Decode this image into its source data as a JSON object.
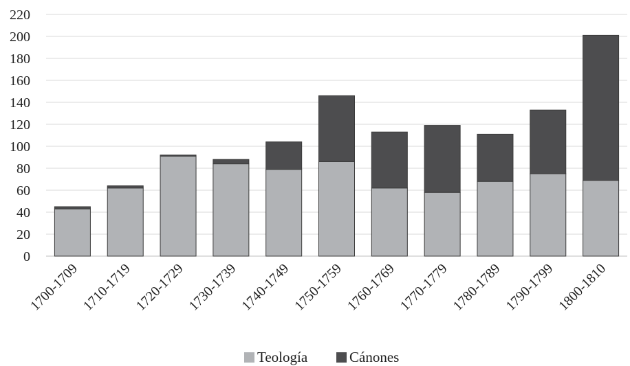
{
  "chart_data": {
    "type": "bar",
    "stacked": true,
    "categories": [
      "1700-1709",
      "1710-1719",
      "1720-1729",
      "1730-1739",
      "1740-1749",
      "1750-1759",
      "1760-1769",
      "1770-1779",
      "1780-1789",
      "1790-1799",
      "1800-1810"
    ],
    "series": [
      {
        "name": "Teología",
        "color": "#b1b3b6",
        "values": [
          43,
          62,
          91,
          84,
          79,
          86,
          62,
          58,
          68,
          75,
          69
        ]
      },
      {
        "name": "Cánones",
        "color": "#4d4d4f",
        "values": [
          2,
          2,
          1,
          4,
          25,
          60,
          51,
          61,
          43,
          58,
          132
        ]
      }
    ],
    "y_ticks": [
      0,
      20,
      40,
      60,
      80,
      100,
      120,
      140,
      160,
      180,
      200,
      220
    ],
    "ylim": [
      0,
      220
    ],
    "grid": true,
    "legend_position": "bottom",
    "title": "",
    "xlabel": "",
    "ylabel": ""
  }
}
